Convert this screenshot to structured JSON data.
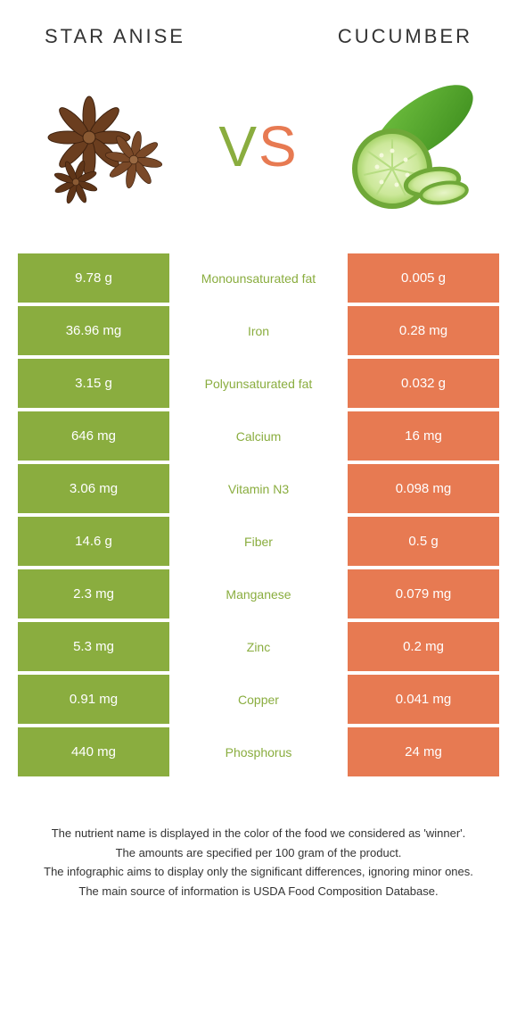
{
  "left": {
    "title": "STAR ANISE",
    "color": "#8aad3f"
  },
  "right": {
    "title": "CUCUMBER",
    "color": "#e77a52"
  },
  "vs": {
    "v": "V",
    "s": "S"
  },
  "nutrient_label_color_winner": "#8aad3f",
  "background": "#ffffff",
  "text_color": "#333333",
  "footer_text_color": "#333333",
  "rows": [
    {
      "left": "9.78 g",
      "label": "Monounsaturated fat",
      "right": "0.005 g",
      "winner": "left"
    },
    {
      "left": "36.96 mg",
      "label": "Iron",
      "right": "0.28 mg",
      "winner": "left"
    },
    {
      "left": "3.15 g",
      "label": "Polyunsaturated fat",
      "right": "0.032 g",
      "winner": "left"
    },
    {
      "left": "646 mg",
      "label": "Calcium",
      "right": "16 mg",
      "winner": "left"
    },
    {
      "left": "3.06 mg",
      "label": "Vitamin N3",
      "right": "0.098 mg",
      "winner": "left"
    },
    {
      "left": "14.6 g",
      "label": "Fiber",
      "right": "0.5 g",
      "winner": "left"
    },
    {
      "left": "2.3 mg",
      "label": "Manganese",
      "right": "0.079 mg",
      "winner": "left"
    },
    {
      "left": "5.3 mg",
      "label": "Zinc",
      "right": "0.2 mg",
      "winner": "left"
    },
    {
      "left": "0.91 mg",
      "label": "Copper",
      "right": "0.041 mg",
      "winner": "left"
    },
    {
      "left": "440 mg",
      "label": "Phosphorus",
      "right": "24 mg",
      "winner": "left"
    }
  ],
  "footer": [
    "The nutrient name is displayed in the color of the food we considered as 'winner'.",
    "The amounts are specified per 100 gram of the product.",
    "The infographic aims to display only the significant differences, ignoring minor ones.",
    "The main source of information is USDA Food Composition Database."
  ]
}
